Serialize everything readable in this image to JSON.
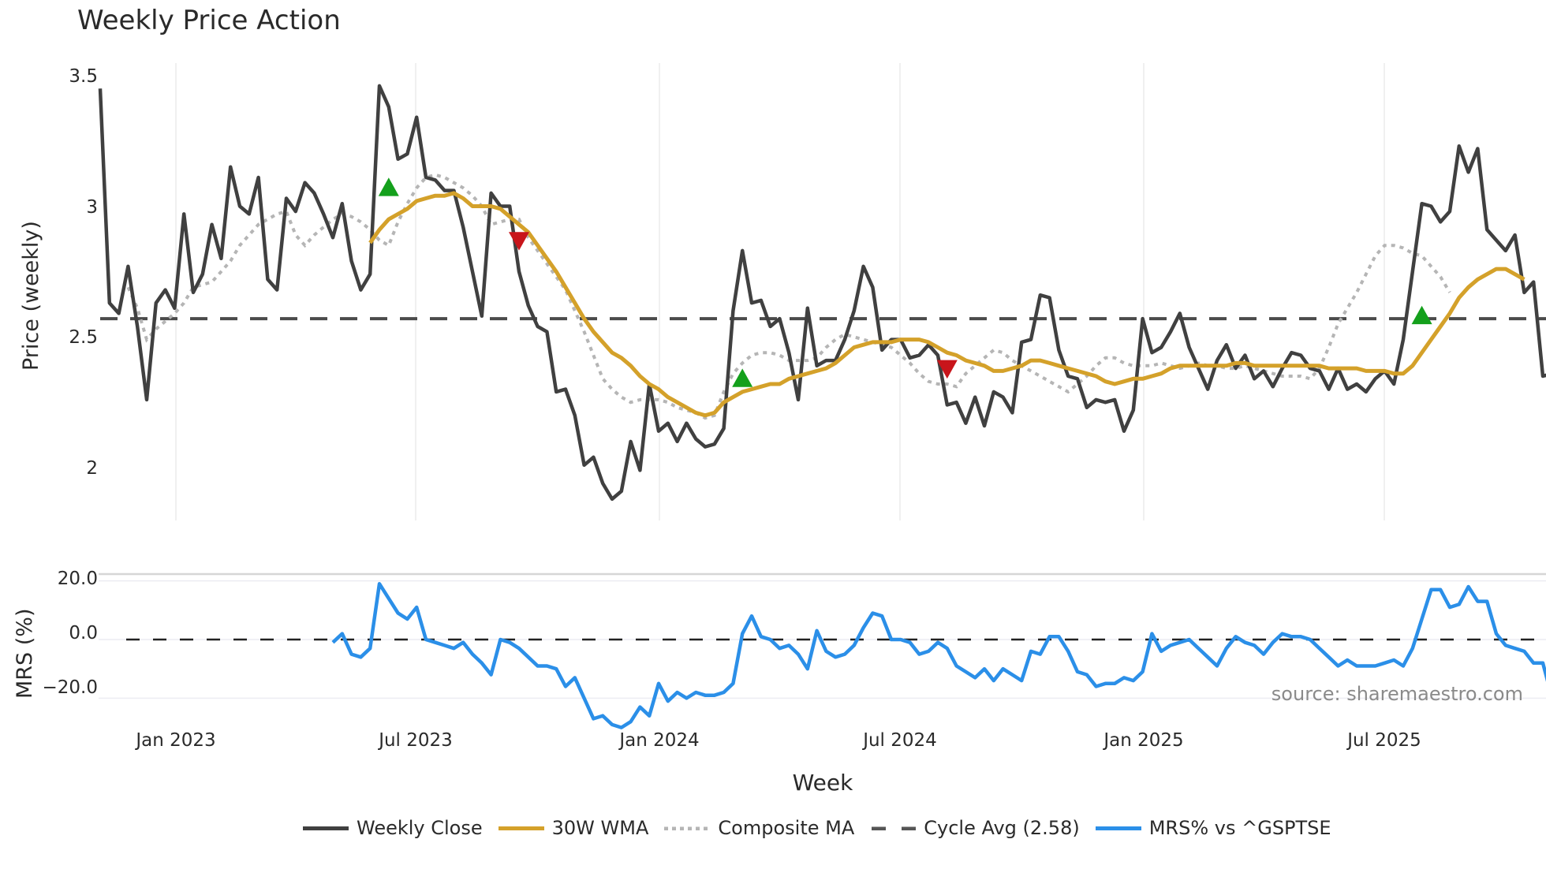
{
  "title": "Weekly Price Action",
  "source_note": "source: sharemaestro.com",
  "axes": {
    "price_ylabel": "Price (weekly)",
    "mrs_ylabel": "MRS (%)",
    "xlabel": "Week",
    "price_yticks": [
      "3.5",
      "3",
      "2.5",
      "2"
    ],
    "mrs_yticks": [
      "20.0",
      "0.0",
      "−20.0"
    ],
    "xticks": [
      "Jan 2023",
      "Jul 2023",
      "Jan 2024",
      "Jul 2024",
      "Jan 2025",
      "Jul 2025"
    ]
  },
  "legend": [
    {
      "label": "Weekly Close",
      "color": "#404040",
      "style": "solid"
    },
    {
      "label": "30W WMA",
      "color": "#d4a12a",
      "style": "solid"
    },
    {
      "label": "Composite MA",
      "color": "#b5b5b5",
      "style": "dotted"
    },
    {
      "label": "Cycle Avg (2.58)",
      "color": "#4a4a4a",
      "style": "dashed"
    },
    {
      "label": "MRS% vs ^GSPTSE",
      "color": "#2b8fe8",
      "style": "solid"
    }
  ],
  "colors": {
    "close": "#404040",
    "wma": "#d4a12a",
    "composite": "#b5b5b5",
    "cycle": "#4a4a4a",
    "mrs": "#2b8fe8",
    "buy_signal": "#14a01c",
    "sell_signal": "#c8151b",
    "grid": "#ebebeb"
  },
  "chart_data": [
    {
      "type": "line",
      "title": "Weekly Price Action",
      "xlabel": "Week",
      "ylabel": "Price (weekly)",
      "ylim": [
        1.82,
        3.6
      ],
      "grid": "vertical",
      "legend_position": "bottom",
      "x_start": "2022-11-07",
      "x_step": "1 week",
      "xticks": [
        "Jan 2023",
        "Jul 2023",
        "Jan 2024",
        "Jul 2024",
        "Jan 2025",
        "Jul 2025"
      ],
      "series": [
        {
          "name": "Weekly Close",
          "start_index": 0,
          "values": [
            3.46,
            2.64,
            2.6,
            2.78,
            2.55,
            2.27,
            2.64,
            2.69,
            2.62,
            2.98,
            2.68,
            2.75,
            2.94,
            2.81,
            3.16,
            3.01,
            2.98,
            3.12,
            2.73,
            2.69,
            3.04,
            2.99,
            3.1,
            3.06,
            2.98,
            2.89,
            3.02,
            2.8,
            2.69,
            2.75,
            3.47,
            3.39,
            3.19,
            3.21,
            3.35,
            3.12,
            3.11,
            3.07,
            3.07,
            2.93,
            2.76,
            2.59,
            3.06,
            3.01,
            3.01,
            2.76,
            2.63,
            2.55,
            2.53,
            2.3,
            2.31,
            2.21,
            2.02,
            2.05,
            1.95,
            1.89,
            1.92,
            2.11,
            2.0,
            2.33,
            2.15,
            2.18,
            2.11,
            2.18,
            2.12,
            2.09,
            2.1,
            2.16,
            2.61,
            2.84,
            2.64,
            2.65,
            2.55,
            2.58,
            2.45,
            2.27,
            2.62,
            2.4,
            2.42,
            2.42,
            2.5,
            2.61,
            2.78,
            2.7,
            2.46,
            2.5,
            2.5,
            2.43,
            2.44,
            2.48,
            2.44,
            2.25,
            2.26,
            2.18,
            2.28,
            2.17,
            2.3,
            2.28,
            2.22,
            2.49,
            2.5,
            2.67,
            2.66,
            2.46,
            2.36,
            2.35,
            2.24,
            2.27,
            2.26,
            2.27,
            2.15,
            2.23,
            2.58,
            2.45,
            2.47,
            2.53,
            2.6,
            2.47,
            2.39,
            2.31,
            2.42,
            2.48,
            2.39,
            2.44,
            2.35,
            2.38,
            2.32,
            2.39,
            2.45,
            2.44,
            2.39,
            2.38,
            2.31,
            2.39,
            2.31,
            2.33,
            2.3,
            2.35,
            2.38,
            2.33,
            2.5,
            2.76,
            3.02,
            3.01,
            2.95,
            2.99,
            3.24,
            3.14,
            3.23,
            2.92,
            2.88,
            2.84,
            2.9,
            2.68,
            2.72,
            2.36,
            2.37
          ]
        },
        {
          "name": "30W WMA",
          "start_index": 29,
          "values": [
            2.87,
            2.92,
            2.96,
            2.98,
            3.0,
            3.03,
            3.04,
            3.05,
            3.05,
            3.06,
            3.04,
            3.01,
            3.01,
            3.01,
            3.0,
            2.97,
            2.94,
            2.91,
            2.86,
            2.81,
            2.76,
            2.7,
            2.64,
            2.58,
            2.53,
            2.49,
            2.45,
            2.43,
            2.4,
            2.36,
            2.33,
            2.31,
            2.28,
            2.26,
            2.24,
            2.22,
            2.21,
            2.22,
            2.26,
            2.28,
            2.3,
            2.31,
            2.32,
            2.33,
            2.33,
            2.35,
            2.36,
            2.37,
            2.38,
            2.39,
            2.41,
            2.44,
            2.47,
            2.48,
            2.49,
            2.49,
            2.49,
            2.5,
            2.5,
            2.5,
            2.49,
            2.47,
            2.45,
            2.44,
            2.42,
            2.41,
            2.4,
            2.38,
            2.38,
            2.39,
            2.4,
            2.42,
            2.42,
            2.41,
            2.4,
            2.39,
            2.38,
            2.37,
            2.36,
            2.34,
            2.33,
            2.34,
            2.35,
            2.35,
            2.36,
            2.37,
            2.39,
            2.4,
            2.4,
            2.4,
            2.4,
            2.4,
            2.4,
            2.41,
            2.41,
            2.4,
            2.4,
            2.4,
            2.4,
            2.4,
            2.4,
            2.4,
            2.4,
            2.39,
            2.39,
            2.39,
            2.39,
            2.38,
            2.38,
            2.38,
            2.37,
            2.37,
            2.4,
            2.45,
            2.5,
            2.55,
            2.6,
            2.66,
            2.7,
            2.73,
            2.75,
            2.77,
            2.77,
            2.75,
            2.73
          ]
        },
        {
          "name": "Composite MA",
          "start_index": 3,
          "values": [
            2.7,
            2.62,
            2.5,
            2.54,
            2.57,
            2.6,
            2.64,
            2.7,
            2.71,
            2.72,
            2.76,
            2.8,
            2.86,
            2.9,
            2.94,
            2.96,
            2.98,
            2.99,
            2.9,
            2.86,
            2.9,
            2.93,
            2.96,
            2.98,
            2.97,
            2.95,
            2.92,
            2.88,
            2.86,
            2.95,
            3.02,
            3.08,
            3.12,
            3.13,
            3.12,
            3.1,
            3.08,
            3.05,
            3.01,
            2.94,
            2.95,
            2.96,
            2.96,
            2.89,
            2.84,
            2.79,
            2.74,
            2.69,
            2.61,
            2.53,
            2.44,
            2.35,
            2.31,
            2.28,
            2.26,
            2.27,
            2.27,
            2.27,
            2.26,
            2.24,
            2.23,
            2.22,
            2.2,
            2.21,
            2.3,
            2.37,
            2.41,
            2.44,
            2.45,
            2.45,
            2.44,
            2.42,
            2.42,
            2.42,
            2.43,
            2.47,
            2.5,
            2.52,
            2.51,
            2.5,
            2.49,
            2.48,
            2.47,
            2.44,
            2.41,
            2.37,
            2.34,
            2.33,
            2.33,
            2.32,
            2.37,
            2.4,
            2.43,
            2.46,
            2.45,
            2.42,
            2.4,
            2.38,
            2.36,
            2.34,
            2.32,
            2.3,
            2.33,
            2.36,
            2.4,
            2.43,
            2.43,
            2.41,
            2.4,
            2.4,
            2.4,
            2.41,
            2.4,
            2.39,
            2.4,
            2.41,
            2.4,
            2.4,
            2.39,
            2.39,
            2.4,
            2.39,
            2.38,
            2.37,
            2.36,
            2.36,
            2.36,
            2.35,
            2.39,
            2.47,
            2.56,
            2.62,
            2.68,
            2.75,
            2.82,
            2.86,
            2.86,
            2.85,
            2.83,
            2.82,
            2.78,
            2.74,
            2.68
          ]
        },
        {
          "name": "Cycle Avg (2.58)",
          "constant": 2.58
        }
      ],
      "annotations": [
        {
          "type": "buy",
          "marker": "triangle-up",
          "index": 31,
          "value": 3.08
        },
        {
          "type": "sell",
          "marker": "triangle-down",
          "index": 45,
          "value": 2.88
        },
        {
          "type": "buy",
          "marker": "triangle-up",
          "index": 69,
          "value": 2.35
        },
        {
          "type": "sell",
          "marker": "triangle-down",
          "index": 91,
          "value": 2.39
        },
        {
          "type": "buy",
          "marker": "triangle-up",
          "index": 142,
          "value": 2.59
        }
      ]
    },
    {
      "type": "line",
      "title": "",
      "xlabel": "Week",
      "ylabel": "MRS (%)",
      "ylim": [
        -32,
        25
      ],
      "yticks": [
        20,
        0,
        -20
      ],
      "grid": "horizontal",
      "series": [
        {
          "name": "MRS% vs ^GSPTSE",
          "start_index": 25,
          "values": [
            -1,
            2,
            -5,
            -6,
            -3,
            19,
            14,
            9,
            7,
            11,
            0,
            -1,
            -2,
            -3,
            -1,
            -5,
            -8,
            -12,
            0,
            -1,
            -3,
            -6,
            -9,
            -9,
            -10,
            -16,
            -13,
            -20,
            -27,
            -26,
            -29,
            -30,
            -28,
            -23,
            -26,
            -15,
            -21,
            -18,
            -20,
            -18,
            -19,
            -19,
            -18,
            -15,
            2,
            8,
            1,
            0,
            -3,
            -2,
            -5,
            -10,
            3,
            -4,
            -6,
            -5,
            -2,
            4,
            9,
            8,
            0,
            0,
            -1,
            -5,
            -4,
            -1,
            -3,
            -9,
            -11,
            -13,
            -10,
            -14,
            -10,
            -12,
            -14,
            -4,
            -5,
            1,
            1,
            -4,
            -11,
            -12,
            -16,
            -15,
            -15,
            -13,
            -14,
            -11,
            2,
            -4,
            -2,
            -1,
            0,
            -3,
            -6,
            -9,
            -3,
            1,
            -1,
            -2,
            -5,
            -1,
            2,
            1,
            1,
            0,
            -3,
            -6,
            -9,
            -7,
            -9,
            -9,
            -9,
            -8,
            -7,
            -9,
            -3,
            7,
            17,
            17,
            11,
            12,
            18,
            13,
            13,
            2,
            -2,
            -3,
            -4,
            -8,
            -8,
            -20,
            -19
          ]
        }
      ],
      "reference_line": {
        "value": 0,
        "style": "dashed"
      }
    }
  ]
}
